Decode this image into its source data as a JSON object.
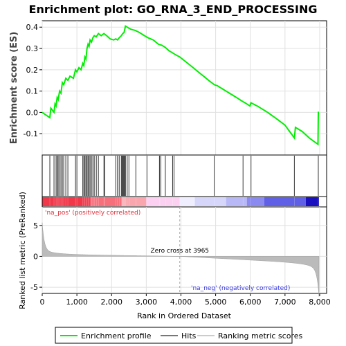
{
  "chart_data": {
    "type": "line",
    "title": "Enrichment plot: GO_RNA_3_END_PROCESSING",
    "top_panel": {
      "ylabel": "Enrichment score (ES)",
      "ylim": [
        -0.2,
        0.43
      ],
      "yticks": [
        -0.1,
        0.0,
        0.1,
        0.2,
        0.3,
        0.4
      ],
      "ytick_labels": [
        "-0.1",
        "0.0",
        "0.1",
        "0.2",
        "0.3",
        "0.4"
      ],
      "series": [
        {
          "name": "Enrichment profile",
          "color": "#00ee00",
          "x": [
            0,
            220,
            250,
            340,
            370,
            400,
            430,
            460,
            500,
            540,
            580,
            620,
            680,
            740,
            800,
            900,
            960,
            1000,
            1060,
            1120,
            1170,
            1200,
            1230,
            1260,
            1290,
            1320,
            1350,
            1380,
            1420,
            1460,
            1500,
            1560,
            1620,
            1700,
            1780,
            1860,
            1960,
            2060,
            2120,
            2170,
            2220,
            2280,
            2320,
            2360,
            2400,
            2450,
            2500,
            2560,
            2680,
            2800,
            2950,
            3050,
            3200,
            3350,
            3450,
            3550,
            3650,
            3750,
            3850,
            3965,
            4200,
            4500,
            4800,
            4960,
            5050,
            5300,
            5600,
            5790,
            5850,
            5990,
            6020,
            6200,
            6500,
            6800,
            7000,
            7270,
            7300,
            7500,
            7700,
            7950,
            7960,
            7980
          ],
          "y": [
            0.0,
            -0.025,
            0.02,
            0.0,
            0.04,
            0.03,
            0.07,
            0.06,
            0.1,
            0.09,
            0.14,
            0.13,
            0.16,
            0.15,
            0.17,
            0.16,
            0.2,
            0.19,
            0.21,
            0.2,
            0.23,
            0.22,
            0.26,
            0.25,
            0.3,
            0.32,
            0.31,
            0.34,
            0.33,
            0.35,
            0.36,
            0.355,
            0.37,
            0.36,
            0.37,
            0.36,
            0.345,
            0.34,
            0.345,
            0.34,
            0.35,
            0.36,
            0.37,
            0.375,
            0.405,
            0.4,
            0.395,
            0.39,
            0.385,
            0.375,
            0.36,
            0.35,
            0.34,
            0.32,
            0.315,
            0.305,
            0.29,
            0.28,
            0.27,
            0.26,
            0.23,
            0.19,
            0.15,
            0.13,
            0.125,
            0.1,
            0.07,
            0.05,
            0.045,
            0.03,
            0.045,
            0.03,
            0.0,
            -0.035,
            -0.06,
            -0.12,
            -0.07,
            -0.09,
            -0.12,
            -0.15,
            0.0,
            0.0
          ]
        }
      ]
    },
    "hits": [
      220,
      340,
      400,
      430,
      460,
      500,
      540,
      580,
      620,
      680,
      740,
      960,
      1000,
      1170,
      1200,
      1230,
      1260,
      1290,
      1320,
      1350,
      1380,
      1420,
      1460,
      1500,
      1560,
      1620,
      1780,
      1800,
      2120,
      2170,
      2220,
      2280,
      2300,
      2320,
      2340,
      2360,
      2380,
      2400,
      2450,
      2500,
      2700,
      3020,
      3380,
      3420,
      3550,
      3760,
      3800,
      4960,
      5790,
      6020,
      7270,
      7960
    ],
    "bottom_panel": {
      "ylabel": "Ranked list metric (PreRanked)",
      "ylim": [
        -6,
        8
      ],
      "yticks": [
        -5,
        0,
        5
      ],
      "ytick_labels": [
        "-5",
        "0",
        "5"
      ],
      "zero_cross_label": "Zero cross at 3965",
      "zero_cross": 3965,
      "pos_label": "'na_pos' (positively correlated)",
      "neg_label": "'na_neg' (negatively correlated)"
    },
    "xlabel": "Rank in Ordered Dataset",
    "xlim": [
      0,
      8200
    ],
    "xticks": [
      0,
      1000,
      2000,
      3000,
      4000,
      5000,
      6000,
      7000,
      8000
    ],
    "xtick_labels": [
      "0",
      "1,000",
      "2,000",
      "3,000",
      "4,000",
      "5,000",
      "6,000",
      "7,000",
      "8,000"
    ],
    "n_genes": 7980,
    "legend": [
      {
        "label": "Enrichment profile",
        "color": "#00ee00"
      },
      {
        "label": "Hits",
        "color": "#777777"
      },
      {
        "label": "Ranking metric scores",
        "color": "#cccccc"
      }
    ]
  }
}
